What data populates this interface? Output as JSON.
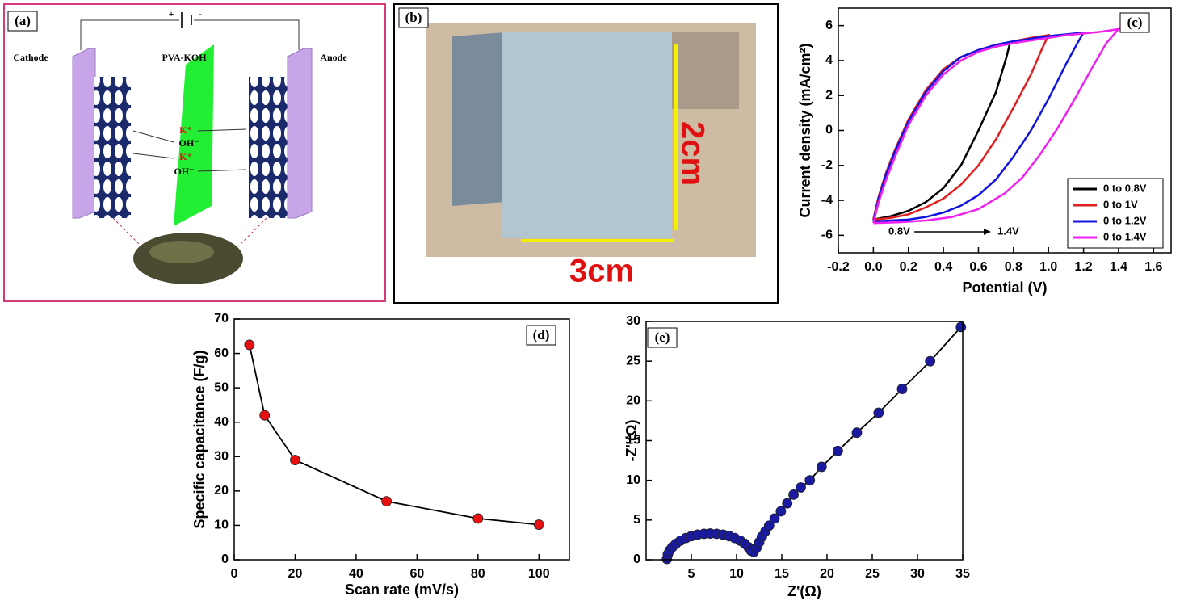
{
  "panel_a": {
    "label": "(a)",
    "battery": [
      "+",
      "-"
    ],
    "cathode": "Cathode",
    "electrolyte": "PVA-KOH",
    "anode": "Anode",
    "ions": [
      "K⁺",
      "OH⁻",
      "K⁺",
      "OH⁻"
    ]
  },
  "panel_b": {
    "label": "(b)",
    "height": "2cm",
    "width": "3cm"
  },
  "chart_data": [
    {
      "type": "line",
      "panel_label": "(c)",
      "x_label": "Potential (V)",
      "y_label": "Current density (mA/cm²)",
      "xlim": [
        -0.2,
        1.7
      ],
      "ylim": [
        -7,
        7
      ],
      "xticks": [
        -0.2,
        {
          "value": 0,
          "label": "0.0"
        },
        0.2,
        0.4,
        0.6,
        0.8,
        {
          "value": 1,
          "label": "1.0"
        },
        1.2,
        1.4,
        1.6
      ],
      "yticks": [
        -6,
        -4,
        -2,
        0,
        2,
        4,
        6
      ],
      "legend": "lower right",
      "annotations": [
        "0.8V",
        "1.4V"
      ],
      "series": [
        {
          "name": "0 to 0.8V",
          "color": "#000000",
          "x": [
            0,
            0.03,
            0.07,
            0.12,
            0.2,
            0.3,
            0.4,
            0.5,
            0.6,
            0.7,
            0.78,
            0.76,
            0.7,
            0.6,
            0.5,
            0.4,
            0.3,
            0.2,
            0.1,
            0
          ],
          "values": [
            -5.1,
            -3.8,
            -2.5,
            -1.2,
            0.6,
            2.3,
            3.5,
            4.2,
            4.6,
            4.8,
            5.0,
            4.2,
            2.2,
            0,
            -2,
            -3.3,
            -4.1,
            -4.6,
            -4.9,
            -5.1
          ]
        },
        {
          "name": "0 to 1V",
          "color": "#e02020",
          "x": [
            0,
            0.03,
            0.07,
            0.12,
            0.2,
            0.3,
            0.4,
            0.5,
            0.6,
            0.7,
            0.8,
            0.9,
            1.0,
            0.96,
            0.9,
            0.8,
            0.7,
            0.6,
            0.5,
            0.4,
            0.3,
            0.2,
            0.1,
            0
          ],
          "values": [
            -5.1,
            -3.8,
            -2.5,
            -1.2,
            0.6,
            2.3,
            3.5,
            4.2,
            4.6,
            4.9,
            5.1,
            5.3,
            5.45,
            4.6,
            3.2,
            1.3,
            -0.5,
            -2,
            -3.1,
            -3.9,
            -4.4,
            -4.8,
            -5.0,
            -5.1
          ]
        },
        {
          "name": "0 to 1.2V",
          "color": "#1414e0",
          "x": [
            0,
            0.03,
            0.07,
            0.12,
            0.2,
            0.3,
            0.4,
            0.5,
            0.6,
            0.7,
            0.8,
            0.9,
            1.0,
            1.1,
            1.2,
            1.16,
            1.1,
            1.0,
            0.9,
            0.8,
            0.7,
            0.6,
            0.5,
            0.4,
            0.3,
            0.2,
            0.1,
            0
          ],
          "values": [
            -5.2,
            -3.9,
            -2.6,
            -1.3,
            0.5,
            2.2,
            3.4,
            4.2,
            4.6,
            4.9,
            5.1,
            5.25,
            5.4,
            5.5,
            5.6,
            4.9,
            3.8,
            1.8,
            0,
            -1.5,
            -2.8,
            -3.7,
            -4.3,
            -4.7,
            -4.95,
            -5.1,
            -5.15,
            -5.2
          ]
        },
        {
          "name": "0 to 1.4V",
          "color": "#f020f0",
          "x": [
            0,
            0.03,
            0.07,
            0.12,
            0.2,
            0.3,
            0.4,
            0.5,
            0.6,
            0.7,
            0.8,
            0.9,
            1.0,
            1.1,
            1.2,
            1.3,
            1.4,
            1.33,
            1.25,
            1.15,
            1.05,
            0.95,
            0.85,
            0.75,
            0.6,
            0.45,
            0.3,
            0.15,
            0
          ],
          "values": [
            -5.3,
            -4.1,
            -2.9,
            -1.6,
            0.3,
            2.0,
            3.2,
            4.0,
            4.5,
            4.8,
            5.0,
            5.15,
            5.3,
            5.45,
            5.55,
            5.65,
            5.8,
            5.0,
            3.6,
            1.8,
            0.1,
            -1.4,
            -2.7,
            -3.6,
            -4.5,
            -4.95,
            -5.15,
            -5.25,
            -5.3
          ]
        }
      ]
    },
    {
      "type": "line",
      "panel_label": "(d)",
      "x_label": "Scan rate (mV/s)",
      "y_label": "Specific capacitance (F/g)",
      "markers": true,
      "xlim": [
        0,
        110
      ],
      "ylim": [
        0,
        70
      ],
      "xticks": [
        0,
        20,
        40,
        60,
        80,
        100
      ],
      "yticks": [
        0,
        10,
        20,
        30,
        40,
        50,
        60,
        70
      ],
      "series": [
        {
          "color": "#e81010",
          "x": [
            5,
            10,
            20,
            50,
            80,
            100
          ],
          "values": [
            62.5,
            42,
            29,
            17,
            12,
            10.2
          ]
        }
      ]
    },
    {
      "type": "line",
      "panel_label": "(e)",
      "x_label": "Z'(Ω)",
      "y_label": "-Z''(Ω)",
      "markers": true,
      "xlim": [
        0,
        35
      ],
      "ylim": [
        0,
        30
      ],
      "xticks": [
        5,
        10,
        15,
        20,
        25,
        30,
        35
      ],
      "yticks": [
        0,
        5,
        10,
        15,
        20,
        25,
        30
      ],
      "series": [
        {
          "color": "#1a1aa0",
          "x": [
            2.3,
            2.4,
            2.6,
            2.9,
            3.3,
            3.8,
            4.4,
            5.0,
            5.7,
            6.4,
            7.1,
            7.8,
            8.5,
            9.2,
            9.8,
            10.4,
            10.9,
            11.3,
            11.6,
            11.9,
            12.2,
            12.5,
            12.8,
            13.2,
            13.6,
            14.2,
            14.9,
            15.6,
            16.3,
            17.1,
            18.1,
            19.4,
            21.2,
            23.3,
            25.7,
            28.3,
            31.4,
            34.8
          ],
          "values": [
            0.1,
            0.67,
            1.15,
            1.6,
            2.02,
            2.4,
            2.73,
            2.97,
            3.16,
            3.26,
            3.3,
            3.26,
            3.16,
            2.97,
            2.73,
            2.4,
            2.02,
            1.6,
            1.15,
            1.0,
            1.5,
            2.2,
            2.9,
            3.6,
            4.3,
            5.2,
            6.1,
            7.1,
            8.2,
            9.1,
            10.0,
            11.7,
            13.7,
            16.0,
            18.5,
            21.5,
            25.0,
            29.3
          ]
        }
      ]
    }
  ]
}
